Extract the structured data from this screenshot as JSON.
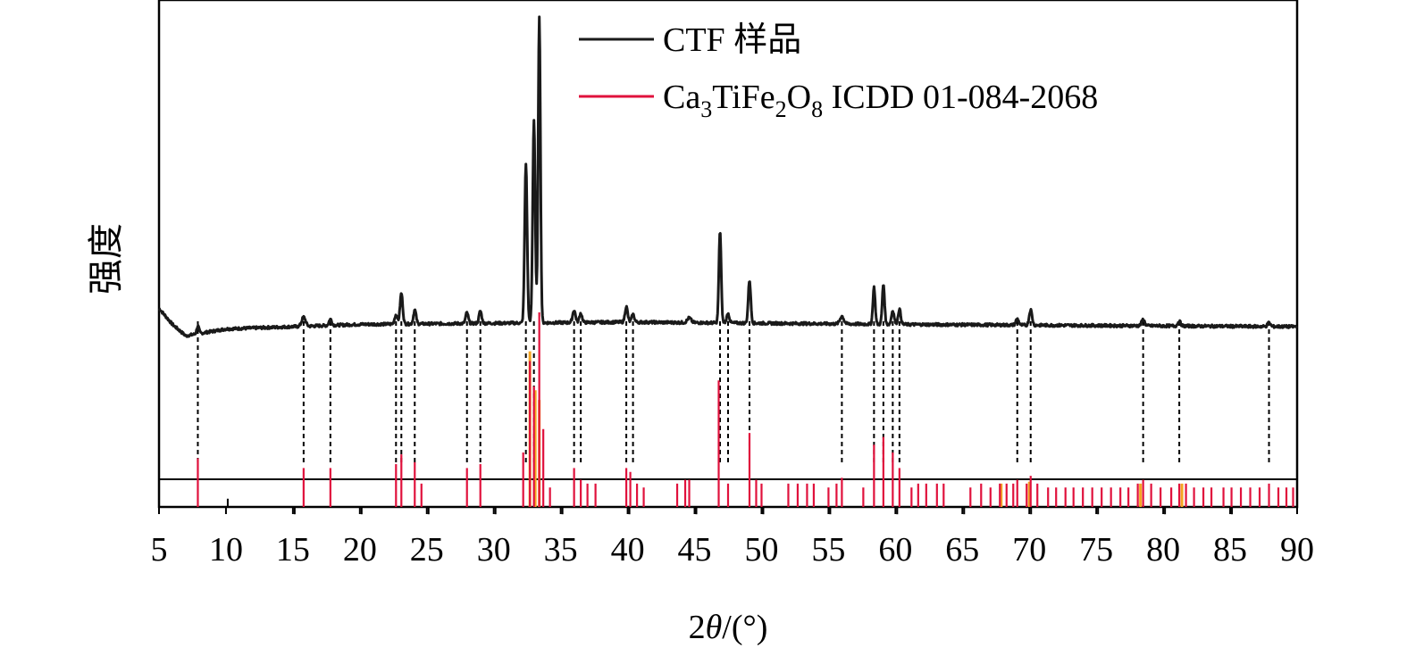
{
  "chart_data": {
    "type": "line",
    "xlabel_prefix": "2",
    "xlabel_symbol": "θ",
    "xlabel_suffix": "/(°)",
    "ylabel": "强度",
    "xlim": [
      5,
      90
    ],
    "x_ticks": [
      5,
      10,
      15,
      20,
      25,
      30,
      35,
      40,
      45,
      50,
      55,
      60,
      65,
      70,
      75,
      80,
      85,
      90
    ],
    "legend_position": "top-right",
    "colors": {
      "sample": "#1a1a1a",
      "reference": "#e0113c",
      "reference_alt": "#f5a623",
      "guide": "#000000"
    },
    "legend": {
      "sample": {
        "label": "CTF 样品"
      },
      "reference": {
        "pre": "Ca",
        "s1": "3",
        "mid": "TiFe",
        "s2": "2",
        "o": "O",
        "s3": "8",
        "post": " ICDD 01-084-2068"
      }
    },
    "series": [
      {
        "legend_key": "sample",
        "baseline": 0.33,
        "background": [
          [
            5,
            0.37
          ],
          [
            6,
            0.335
          ],
          [
            7,
            0.31
          ],
          [
            8,
            0.315
          ],
          [
            10,
            0.325
          ],
          [
            20,
            0.335
          ],
          [
            40,
            0.34
          ],
          [
            60,
            0.335
          ],
          [
            90,
            0.33
          ]
        ],
        "peaks": [
          [
            7.9,
            0.025,
            0.12
          ],
          [
            15.8,
            0.03,
            0.2
          ],
          [
            17.8,
            0.02,
            0.15
          ],
          [
            22.7,
            0.03,
            0.15
          ],
          [
            23.1,
            0.1,
            0.14
          ],
          [
            24.1,
            0.045,
            0.14
          ],
          [
            28.0,
            0.035,
            0.14
          ],
          [
            29.0,
            0.04,
            0.14
          ],
          [
            32.4,
            0.52,
            0.13
          ],
          [
            33.0,
            0.66,
            0.13
          ],
          [
            33.4,
            1.0,
            0.12
          ],
          [
            36.0,
            0.04,
            0.15
          ],
          [
            36.5,
            0.03,
            0.14
          ],
          [
            39.9,
            0.05,
            0.14
          ],
          [
            40.4,
            0.025,
            0.14
          ],
          [
            44.6,
            0.015,
            0.2
          ],
          [
            46.9,
            0.3,
            0.12
          ],
          [
            47.5,
            0.03,
            0.14
          ],
          [
            49.1,
            0.14,
            0.13
          ],
          [
            56.0,
            0.025,
            0.2
          ],
          [
            58.4,
            0.12,
            0.12
          ],
          [
            59.1,
            0.13,
            0.12
          ],
          [
            59.8,
            0.045,
            0.14
          ],
          [
            60.3,
            0.05,
            0.14
          ],
          [
            69.1,
            0.02,
            0.15
          ],
          [
            70.1,
            0.05,
            0.15
          ],
          [
            78.5,
            0.02,
            0.16
          ],
          [
            81.2,
            0.015,
            0.15
          ],
          [
            87.9,
            0.012,
            0.15
          ]
        ]
      },
      {
        "legend_key": "reference",
        "bars": [
          [
            7.9,
            0.25
          ],
          [
            15.8,
            0.2
          ],
          [
            17.8,
            0.2
          ],
          [
            22.7,
            0.22
          ],
          [
            23.1,
            0.27
          ],
          [
            24.1,
            0.23
          ],
          [
            24.6,
            0.12
          ],
          [
            28.0,
            0.2
          ],
          [
            29.0,
            0.22
          ],
          [
            32.2,
            0.28
          ],
          [
            32.7,
            0.75
          ],
          [
            33.0,
            0.62
          ],
          [
            33.4,
            1.0
          ],
          [
            33.7,
            0.4
          ],
          [
            34.2,
            0.1
          ],
          [
            36.0,
            0.2
          ],
          [
            36.5,
            0.14
          ],
          [
            37.0,
            0.12
          ],
          [
            37.6,
            0.12
          ],
          [
            39.9,
            0.2
          ],
          [
            40.2,
            0.18
          ],
          [
            40.7,
            0.12
          ],
          [
            41.2,
            0.1
          ],
          [
            43.7,
            0.12
          ],
          [
            44.3,
            0.14
          ],
          [
            44.6,
            0.14
          ],
          [
            46.8,
            0.65
          ],
          [
            47.5,
            0.12
          ],
          [
            49.1,
            0.38
          ],
          [
            49.6,
            0.14
          ],
          [
            50.0,
            0.12
          ],
          [
            52.0,
            0.12
          ],
          [
            52.7,
            0.12
          ],
          [
            53.4,
            0.12
          ],
          [
            53.9,
            0.12
          ],
          [
            55.0,
            0.1
          ],
          [
            55.6,
            0.12
          ],
          [
            56.0,
            0.15
          ],
          [
            57.6,
            0.1
          ],
          [
            58.4,
            0.32
          ],
          [
            59.1,
            0.36
          ],
          [
            59.8,
            0.28
          ],
          [
            60.3,
            0.2
          ],
          [
            61.2,
            0.1
          ],
          [
            61.7,
            0.12
          ],
          [
            62.3,
            0.12
          ],
          [
            63.1,
            0.12
          ],
          [
            63.6,
            0.12
          ],
          [
            65.6,
            0.1
          ],
          [
            66.4,
            0.12
          ],
          [
            67.1,
            0.1
          ],
          [
            67.8,
            0.12
          ],
          [
            68.3,
            0.12
          ],
          [
            68.8,
            0.12
          ],
          [
            69.1,
            0.14
          ],
          [
            69.8,
            0.12
          ],
          [
            70.1,
            0.16
          ],
          [
            70.6,
            0.12
          ],
          [
            71.4,
            0.1
          ],
          [
            72.0,
            0.1
          ],
          [
            72.7,
            0.1
          ],
          [
            73.3,
            0.1
          ],
          [
            74.0,
            0.1
          ],
          [
            74.7,
            0.1
          ],
          [
            75.4,
            0.1
          ],
          [
            76.1,
            0.1
          ],
          [
            76.8,
            0.1
          ],
          [
            77.4,
            0.1
          ],
          [
            78.1,
            0.12
          ],
          [
            78.5,
            0.14
          ],
          [
            79.1,
            0.12
          ],
          [
            79.8,
            0.1
          ],
          [
            80.6,
            0.1
          ],
          [
            81.2,
            0.12
          ],
          [
            81.7,
            0.12
          ],
          [
            82.3,
            0.1
          ],
          [
            83.0,
            0.1
          ],
          [
            83.6,
            0.1
          ],
          [
            84.5,
            0.1
          ],
          [
            85.1,
            0.1
          ],
          [
            85.8,
            0.1
          ],
          [
            86.5,
            0.1
          ],
          [
            87.2,
            0.1
          ],
          [
            87.9,
            0.12
          ],
          [
            88.6,
            0.1
          ],
          [
            89.2,
            0.1
          ],
          [
            89.7,
            0.1
          ]
        ],
        "highlight_bars": [
          [
            32.7,
            0.8
          ],
          [
            33.1,
            0.6
          ],
          [
            33.4,
            0.55
          ],
          [
            67.9,
            0.12
          ],
          [
            70.0,
            0.13
          ],
          [
            78.3,
            0.12
          ],
          [
            81.4,
            0.12
          ]
        ]
      },
      {
        "legend_key": "reference_black_ticks",
        "bars": [
          [
            10,
            0.18
          ],
          [
            15,
            0.1
          ],
          [
            20,
            0.1
          ],
          [
            25,
            0.1
          ],
          [
            30,
            0.1
          ],
          [
            35,
            0.1
          ],
          [
            40,
            0.1
          ],
          [
            45,
            0.1
          ],
          [
            50,
            0.1
          ],
          [
            55,
            0.1
          ],
          [
            60,
            0.1
          ],
          [
            65,
            0.1
          ],
          [
            70,
            0.1
          ],
          [
            75,
            0.1
          ],
          [
            80,
            0.1
          ],
          [
            85,
            0.1
          ]
        ]
      }
    ],
    "guide_lines": [
      7.9,
      15.8,
      17.8,
      22.7,
      23.1,
      24.1,
      28.0,
      29.0,
      32.4,
      33.0,
      36.0,
      36.5,
      39.9,
      40.4,
      46.9,
      47.5,
      49.1,
      56.0,
      58.4,
      59.1,
      59.8,
      60.3,
      69.1,
      70.1,
      78.5,
      81.2,
      87.9
    ]
  }
}
